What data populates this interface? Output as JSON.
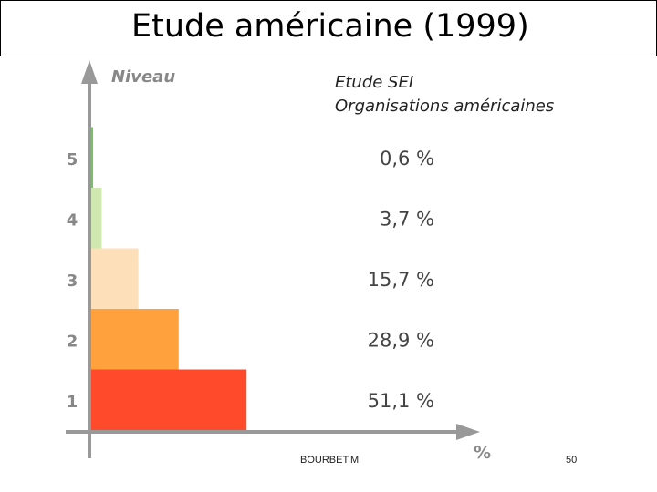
{
  "slide": {
    "title": "Etude américaine (1999)",
    "author": "BOURBET.M",
    "page_number": "50"
  },
  "chart_data": {
    "type": "bar",
    "orientation": "horizontal",
    "title_lines": [
      "Etude SEI",
      "Organisations américaines"
    ],
    "ylabel": "Niveau",
    "xlabel": "%",
    "categories": [
      "1",
      "2",
      "3",
      "4",
      "5"
    ],
    "values": [
      51.1,
      28.9,
      15.7,
      3.7,
      0.6
    ],
    "value_labels": [
      "51,1 %",
      "28,9 %",
      "15,7 %",
      "3,7 %",
      "0,6 %"
    ],
    "colors": [
      "#ff4a2c",
      "#ffa23d",
      "#fde0b9",
      "#cfe8b0",
      "#7cbf6a"
    ],
    "axis_color": "#999999",
    "label_color": "#888888",
    "value_color": "#444444",
    "grid": false,
    "legend": "none"
  }
}
